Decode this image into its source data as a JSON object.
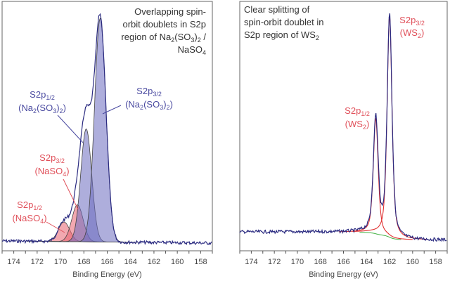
{
  "chart_data": [
    {
      "type": "line",
      "xlabel": "Binding Energy (eV)",
      "xlim": [
        175,
        157
      ],
      "x_reversed": true,
      "y_axis_shown": false,
      "grid": false,
      "tick_labels": [
        "174",
        "172",
        "170",
        "168",
        "166",
        "164",
        "162",
        "160",
        "158"
      ],
      "title_lines": [
        [
          {
            "t": "Overlapping spin-"
          }
        ],
        [
          {
            "t": "orbit doublets in S2p"
          }
        ],
        [
          {
            "t": "region of Na"
          },
          {
            "t": "2",
            "sub": true
          },
          {
            "t": "(SO"
          },
          {
            "t": "3",
            "sub": true
          },
          {
            "t": ")"
          },
          {
            "t": "2",
            "sub": true
          },
          {
            "t": " /"
          }
        ],
        [
          {
            "t": "NaSO"
          },
          {
            "t": "4",
            "sub": true
          }
        ]
      ],
      "peaks": [
        {
          "label": "S2p3/2 (Na2(SO3)2)",
          "center_eV": 166.6,
          "rel_intensity": 0.97,
          "fwhm_eV": 1.15,
          "color": "#6b6bc0"
        },
        {
          "label": "S2p1/2 (Na2(SO3)2)",
          "center_eV": 167.8,
          "rel_intensity": 0.49,
          "fwhm_eV": 1.1,
          "color": "#6b6bc0"
        },
        {
          "label": "S2p3/2 (NaSO4)",
          "center_eV": 168.55,
          "rel_intensity": 0.16,
          "fwhm_eV": 1.15,
          "color": "#e86070"
        },
        {
          "label": "S2p1/2 (NaSO4)",
          "center_eV": 169.7,
          "rel_intensity": 0.085,
          "fwhm_eV": 1.15,
          "color": "#e86070"
        }
      ],
      "annotations": [
        {
          "lines": [
            [
              {
                "t": "S2p"
              },
              {
                "t": "1/2",
                "sub": true
              }
            ],
            [
              {
                "t": "(Na"
              },
              {
                "t": "2",
                "sub": true
              },
              {
                "t": "(SO"
              },
              {
                "t": "3",
                "sub": true
              },
              {
                "t": ")"
              },
              {
                "t": "2",
                "sub": true
              },
              {
                "t": ")"
              }
            ]
          ],
          "color": "#4a4aa0"
        },
        {
          "lines": [
            [
              {
                "t": "S2p"
              },
              {
                "t": "3/2",
                "sub": true
              }
            ],
            [
              {
                "t": "(Na"
              },
              {
                "t": "2",
                "sub": true
              },
              {
                "t": "(SO"
              },
              {
                "t": "3",
                "sub": true
              },
              {
                "t": ")"
              },
              {
                "t": "2",
                "sub": true
              },
              {
                "t": ")"
              }
            ]
          ],
          "color": "#4a4aa0"
        },
        {
          "lines": [
            [
              {
                "t": "S2p"
              },
              {
                "t": "3/2",
                "sub": true
              }
            ],
            [
              {
                "t": "(NaSO"
              },
              {
                "t": "4",
                "sub": true
              },
              {
                "t": ")"
              }
            ]
          ],
          "color": "#e0505a"
        },
        {
          "lines": [
            [
              {
                "t": "S2p"
              },
              {
                "t": "1/2",
                "sub": true
              }
            ],
            [
              {
                "t": "(NaSO"
              },
              {
                "t": "4",
                "sub": true
              },
              {
                "t": ")"
              }
            ]
          ],
          "color": "#e0505a"
        }
      ],
      "envelope_color": "#2a2a80"
    },
    {
      "type": "line",
      "xlabel": "Binding Energy (eV)",
      "xlim": [
        175,
        157
      ],
      "x_reversed": true,
      "y_axis_shown": false,
      "grid": false,
      "tick_labels": [
        "174",
        "172",
        "170",
        "168",
        "166",
        "164",
        "162",
        "160",
        "158"
      ],
      "title_lines": [
        [
          {
            "t": "Clear splitting  of"
          }
        ],
        [
          {
            "t": "spin-orbit doublet in"
          }
        ],
        [
          {
            "t": "S2p region of WS"
          },
          {
            "t": "2",
            "sub": true
          }
        ]
      ],
      "peaks": [
        {
          "label": "S2p3/2 (WS2)",
          "center_eV": 162.0,
          "rel_intensity": 1.0,
          "fwhm_eV": 0.5,
          "color": "#e03030"
        },
        {
          "label": "S2p1/2 (WS2)",
          "center_eV": 163.2,
          "rel_intensity": 0.52,
          "fwhm_eV": 0.5,
          "color": "#e03030"
        }
      ],
      "background": {
        "from_eV": 164.6,
        "to_eV": 161.0,
        "color": "#40b040"
      },
      "annotations": [
        {
          "lines": [
            [
              {
                "t": "S2p"
              },
              {
                "t": "3/2",
                "sub": true
              }
            ],
            [
              {
                "t": "(WS"
              },
              {
                "t": "2",
                "sub": true
              },
              {
                "t": ")"
              }
            ]
          ],
          "color": "#e0505a"
        },
        {
          "lines": [
            [
              {
                "t": "S2p"
              },
              {
                "t": "1/2",
                "sub": true
              }
            ],
            [
              {
                "t": "(WS"
              },
              {
                "t": "2",
                "sub": true
              },
              {
                "t": ")"
              }
            ]
          ],
          "color": "#e0505a"
        }
      ],
      "envelope_color": "#2a2a80"
    }
  ]
}
